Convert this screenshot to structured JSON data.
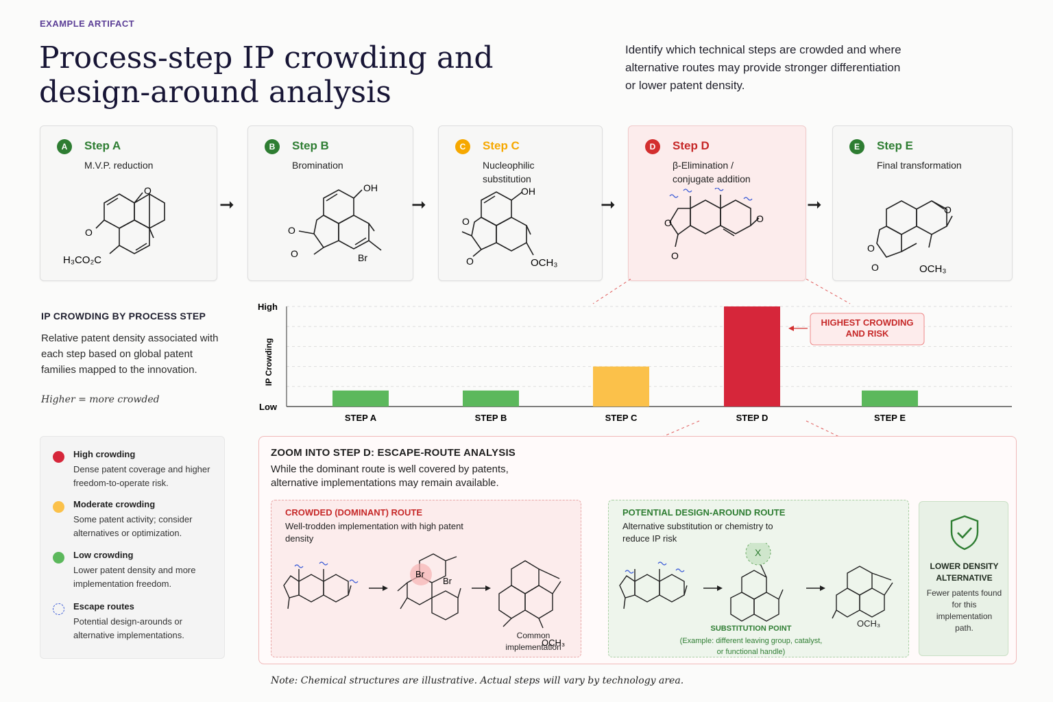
{
  "header": {
    "eyebrow": "EXAMPLE ARTIFACT",
    "title": "Process-step IP crowding and design-around analysis",
    "subtitle": "Identify which technical steps are crowded and where alternative routes may provide stronger differentiation or lower patent density."
  },
  "steps": [
    {
      "badge": "A",
      "name": "Step A",
      "desc": "M.V.P. reduction",
      "level": "low",
      "color": "#2e7d32"
    },
    {
      "badge": "B",
      "name": "Step B",
      "desc": "Bromination",
      "level": "low",
      "color": "#2e7d32"
    },
    {
      "badge": "C",
      "name": "Step C",
      "desc": "Nucleophilic substitution",
      "level": "moderate",
      "color": "#f6a800"
    },
    {
      "badge": "D",
      "name": "Step D",
      "desc": "β-Elimination / conjugate addition",
      "level": "high",
      "color": "#d32f2f"
    },
    {
      "badge": "E",
      "name": "Step E",
      "desc": "Final transformation",
      "level": "low",
      "color": "#2e7d32"
    }
  ],
  "molecule_labels": {
    "a_o1": "O",
    "a_o2": "O",
    "a_ester": "H₃CO₂C",
    "b_oh": "OH",
    "b_o1": "O",
    "b_o2": "O",
    "b_br": "Br",
    "c_oh": "OH",
    "c_o1": "O",
    "c_o2": "O",
    "c_och3": "OCH₃",
    "d_o1": "O",
    "d_o2": "O",
    "d_o3": "O",
    "e_o1": "O",
    "e_o2": "O",
    "e_o3": "O",
    "e_och3": "OCH₃"
  },
  "crowding_section": {
    "title": "IP CROWDING BY PROCESS STEP",
    "text": "Relative patent density associated with each step based on global patent families mapped to the innovation.",
    "note": "Higher = more crowded"
  },
  "chart_data": {
    "type": "bar",
    "categories": [
      "STEP A",
      "STEP B",
      "STEP C",
      "STEP D",
      "STEP E"
    ],
    "values": [
      0.16,
      0.16,
      0.4,
      1.0,
      0.16
    ],
    "colors": [
      "#5cb85c",
      "#5cb85c",
      "#fbc14a",
      "#d6263a",
      "#5cb85c"
    ],
    "ylabel": "IP Crowding",
    "y_tick_labels": [
      "High",
      "Low"
    ],
    "ylim": [
      0,
      1
    ],
    "grid": true,
    "annotation": "HIGHEST CROWDING AND RISK"
  },
  "legend": [
    {
      "title": "High crowding",
      "desc": "Dense patent coverage and higher freedom-to-operate risk.",
      "color": "#d6263a"
    },
    {
      "title": "Moderate crowding",
      "desc": "Some patent activity; consider alternatives or optimization.",
      "color": "#fbc14a"
    },
    {
      "title": "Low crowding",
      "desc": "Lower patent density and more implementation freedom.",
      "color": "#5cb85c"
    },
    {
      "title": "Escape routes",
      "desc": "Potential design-arounds or alternative implementations.",
      "color": "#3b5bd6"
    }
  ],
  "zoom": {
    "title": "ZOOM INTO STEP D: ESCAPE-ROUTE ANALYSIS",
    "text": "While the dominant route is well covered by patents, alternative implementations may remain available.",
    "crowded_route": {
      "title": "CROWDED (DOMINANT) ROUTE",
      "desc": "Well-trodden implementation with high patent density",
      "caption": "Common implementation",
      "br1": "Br",
      "br2": "Br",
      "och3": "OCH₃"
    },
    "design_route": {
      "title": "POTENTIAL DESIGN-AROUND ROUTE",
      "desc": "Alternative substitution or chemistry to reduce IP risk",
      "point_title": "SUBSTITUTION POINT",
      "point_desc": "(Example: different leaving group, catalyst, or functional handle)",
      "x_mark": "X",
      "och3": "OCH₃"
    },
    "alternative": {
      "title": "LOWER DENSITY ALTERNATIVE",
      "desc": "Fewer patents found for this implementation path."
    }
  },
  "footnote": "Note: Chemical structures are illustrative. Actual steps will vary by technology area."
}
